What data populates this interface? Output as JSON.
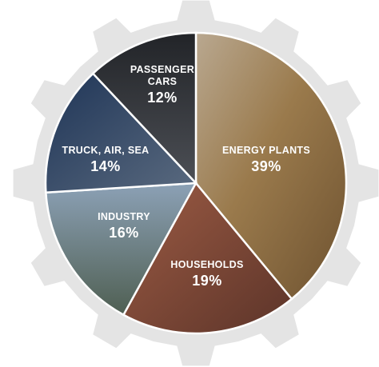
{
  "chart_data": {
    "type": "pie",
    "title": "",
    "slices": [
      {
        "name": "ENERGY PLANTS",
        "name_lines": [
          "ENERGY PLANTS"
        ],
        "value": 39,
        "label": "39%",
        "color": "#8a6a3e"
      },
      {
        "name": "HOUSEHOLDS",
        "name_lines": [
          "HOUSEHOLDS"
        ],
        "value": 19,
        "label": "19%",
        "color": "#8a4a38"
      },
      {
        "name": "INDUSTRY",
        "name_lines": [
          "INDUSTRY"
        ],
        "value": 16,
        "label": "16%",
        "color": "#6b7f95"
      },
      {
        "name": "TRUCK, AIR, SEA",
        "name_lines": [
          "TRUCK, AIR, SEA"
        ],
        "value": 14,
        "label": "14%",
        "color": "#3c4f6a"
      },
      {
        "name": "PASSENGER CARS",
        "name_lines": [
          "PASSENGER",
          "CARS"
        ],
        "value": 12,
        "label": "12%",
        "color": "#33363a"
      }
    ],
    "start_angle_deg": 0,
    "direction": "clockwise",
    "separator_color": "#ffffff",
    "gear_color": "#e4e4e4"
  }
}
